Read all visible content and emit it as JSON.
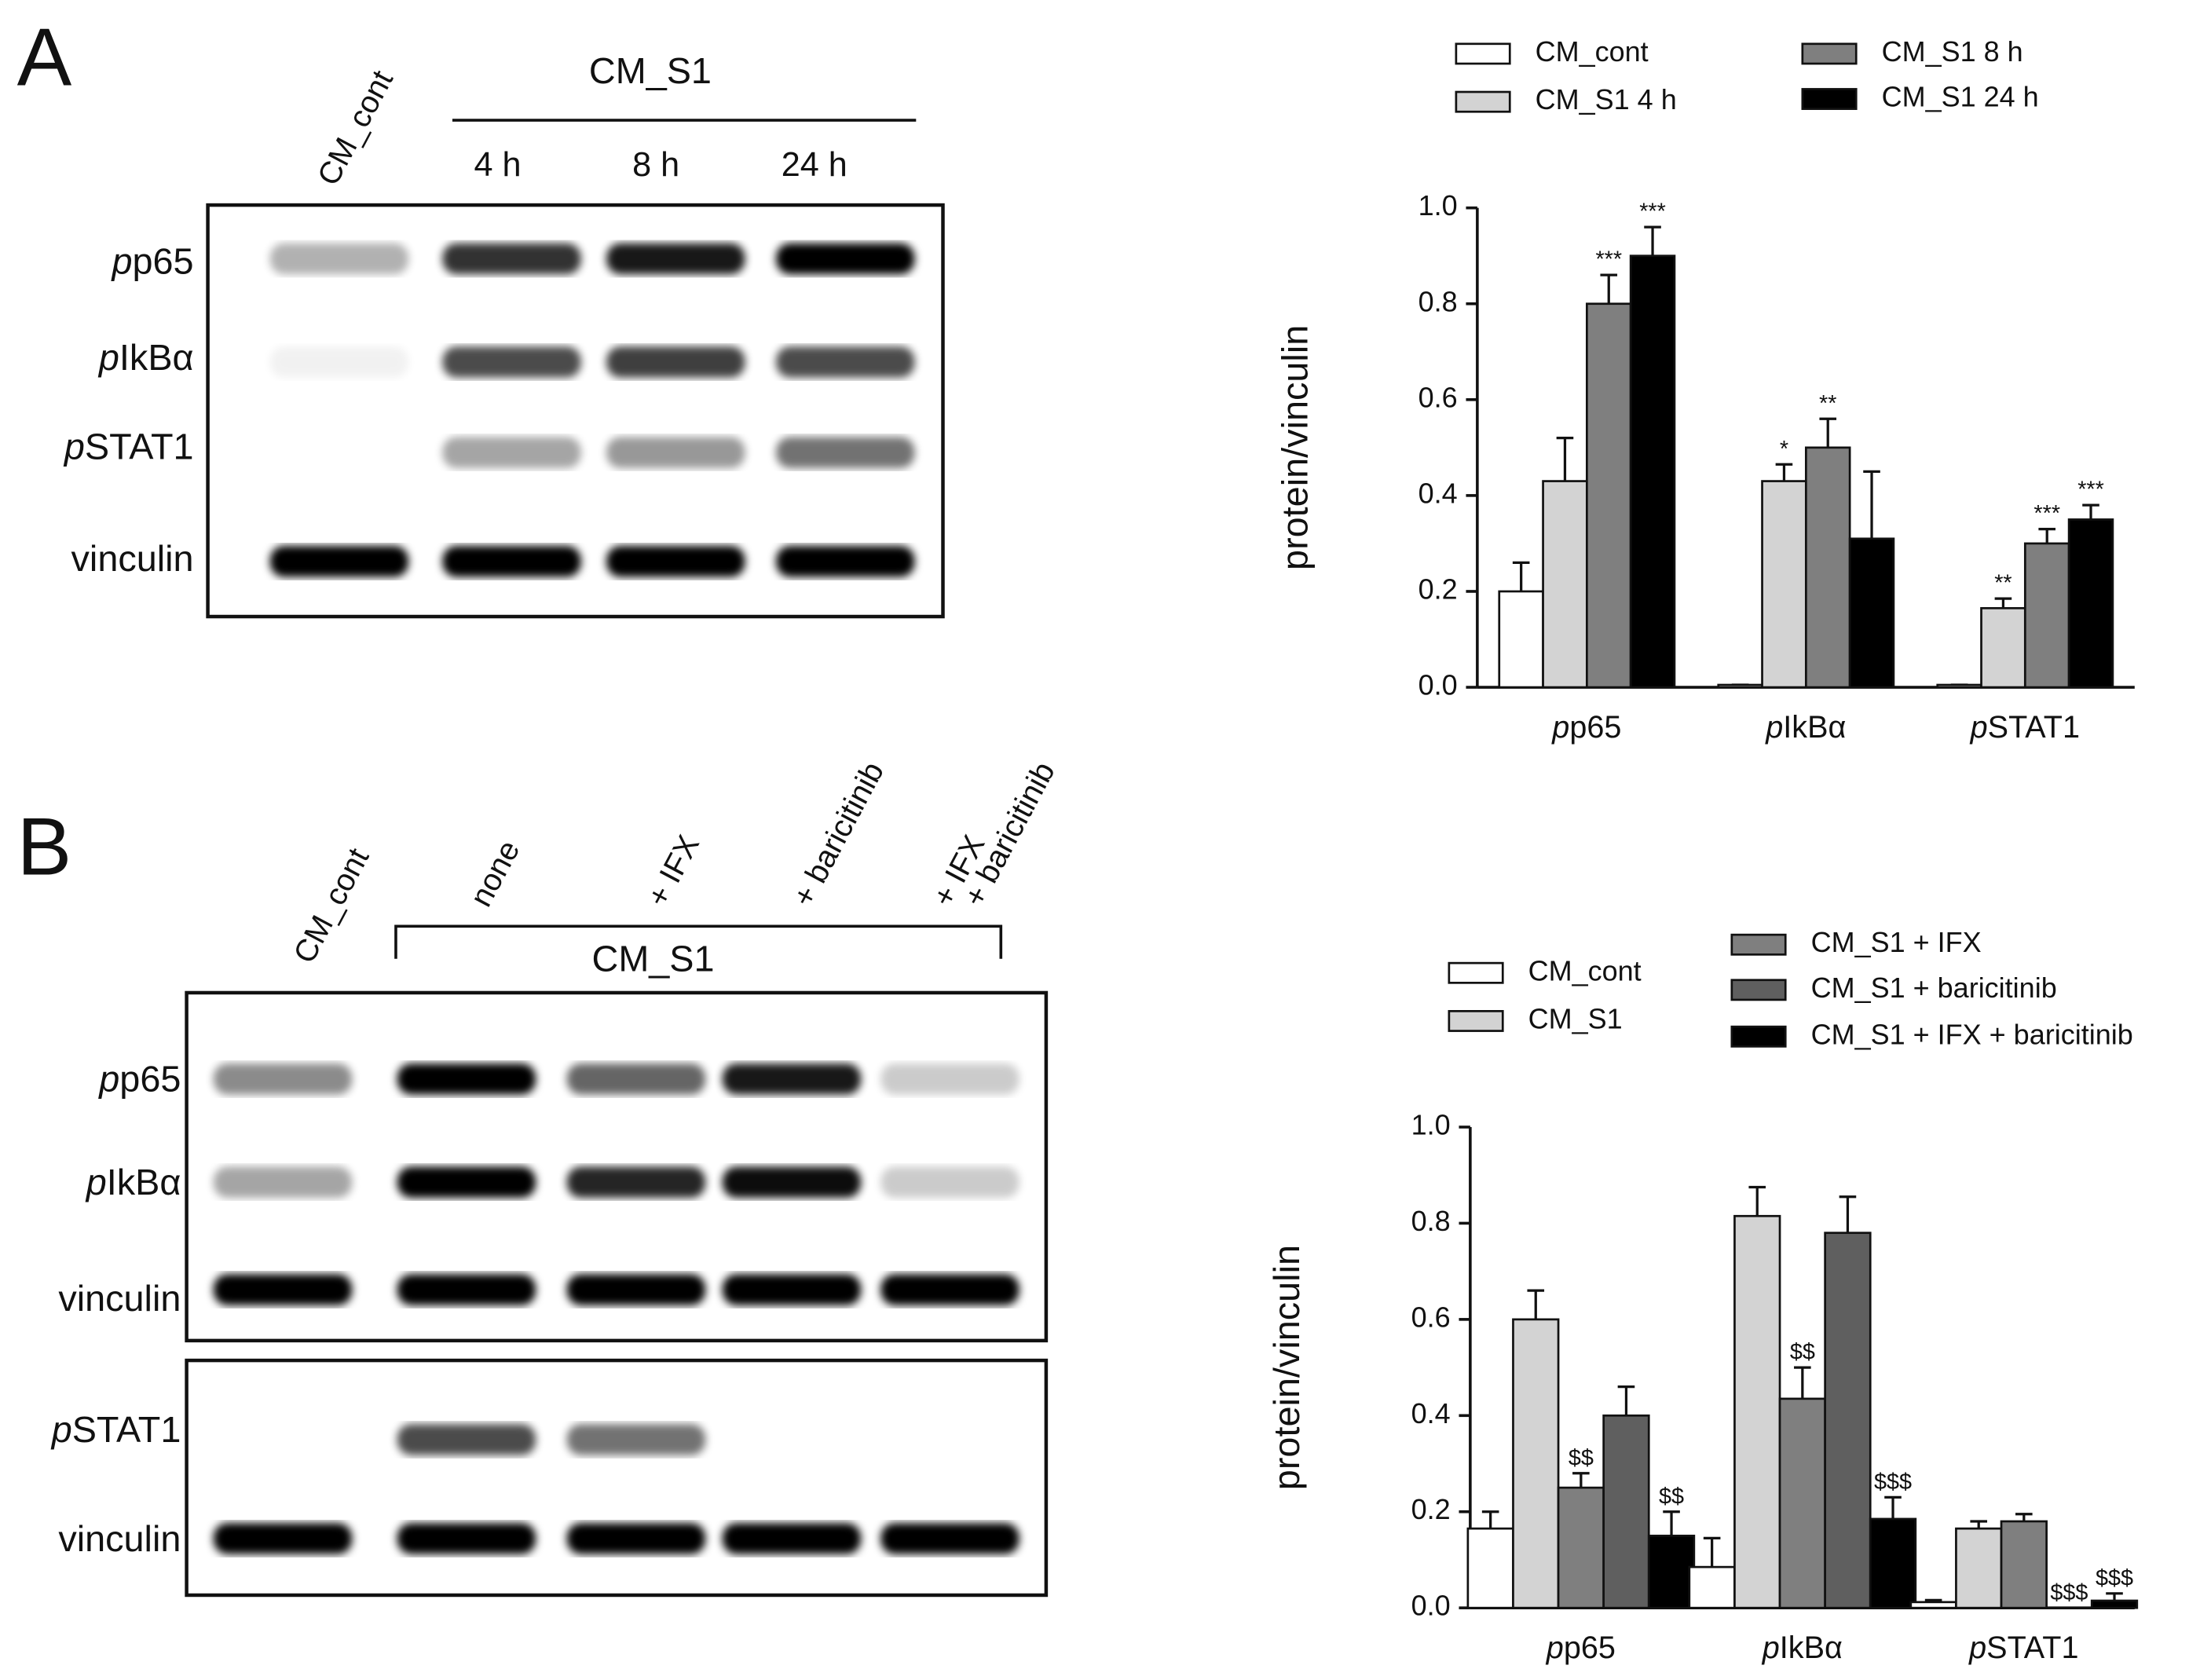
{
  "panels": [
    {
      "letter": "A",
      "lanes": [
        "CM_cont"
      ],
      "group": "CM_S1",
      "group_lanes": [
        "4 h",
        "8  h",
        "24 h"
      ],
      "rows": [
        "pp65",
        "pIkBα",
        "pSTAT1",
        "vinculin"
      ]
    },
    {
      "letter": "B",
      "lanes": [
        "CM_cont",
        "none",
        "+ IFX",
        "+ baricitinib",
        [
          "+ IFX",
          "+ baricitinib"
        ]
      ],
      "group": "CM_S1",
      "rows": [
        "pp65",
        "pIkBα",
        "vinculin",
        "pSTAT1",
        "vinculin"
      ]
    }
  ],
  "chart_data": [
    {
      "type": "bar",
      "y_label": "protein/vinculin",
      "categories": [
        "pp65",
        "pIkBα",
        "pSTAT1"
      ],
      "ylim": [
        0,
        1
      ],
      "yticks": [
        {
          "value": 0,
          "label": "0.0"
        },
        0.2,
        0.4,
        0.6,
        0.8,
        {
          "value": 1,
          "label": "1.0"
        }
      ],
      "series": [
        {
          "name": "CM_cont",
          "color": "#ffffff",
          "values": [
            0.2,
            0.005,
            0.005
          ],
          "errors": [
            0.06,
            0,
            0
          ],
          "labels": [
            null,
            null,
            null
          ]
        },
        {
          "name": "CM_S1 4 h",
          "color": "#d3d3d3",
          "values": [
            0.43,
            0.43,
            0.165
          ],
          "errors": [
            0.09,
            0.035,
            0.02
          ],
          "labels": [
            null,
            "*",
            "**"
          ]
        },
        {
          "name": "CM_S1 8 h",
          "color": "#7f7f7f",
          "values": [
            0.8,
            0.5,
            0.3
          ],
          "errors": [
            0.06,
            0.06,
            0.03
          ],
          "labels": [
            "***",
            "**",
            "***"
          ]
        },
        {
          "name": "CM_S1 24 h",
          "color": "#000000",
          "values": [
            0.9,
            0.31,
            0.35
          ],
          "errors": [
            0.06,
            0.14,
            0.03
          ],
          "labels": [
            "***",
            null,
            "***"
          ]
        }
      ]
    },
    {
      "type": "bar",
      "y_label": "protein/vinculin",
      "categories": [
        "pp65",
        "pIkBα",
        "pSTAT1"
      ],
      "ylim": [
        0,
        1
      ],
      "yticks": [
        {
          "value": 0,
          "label": "0.0"
        },
        0.2,
        0.4,
        0.6,
        0.8,
        {
          "value": 1,
          "label": "1.0"
        }
      ],
      "series": [
        {
          "name": "CM_cont",
          "color": "#ffffff",
          "values": [
            0.165,
            0.085,
            0.012
          ],
          "errors": [
            0.035,
            0.06,
            0.004
          ],
          "labels": [
            null,
            null,
            null
          ]
        },
        {
          "name": "CM_S1",
          "color": "#d3d3d3",
          "values": [
            0.6,
            0.815,
            0.165
          ],
          "errors": [
            0.06,
            0.06,
            0.015
          ],
          "labels": [
            null,
            null,
            null
          ]
        },
        {
          "name": "CM_S1 + IFX",
          "color": "#7f7f7f",
          "values": [
            0.25,
            0.435,
            0.18
          ],
          "errors": [
            0.03,
            0.065,
            0.015
          ],
          "labels": [
            "$$",
            "$$",
            null
          ]
        },
        {
          "name": "CM_S1 + baricitinib",
          "color": "#5f5f5f",
          "values": [
            0.4,
            0.78,
            0.0
          ],
          "errors": [
            0.06,
            0.075,
            0
          ],
          "labels": [
            null,
            null,
            "$$$"
          ]
        },
        {
          "name": "CM_S1 + IFX + baricitinib",
          "color": "#000000",
          "values": [
            0.15,
            0.185,
            0.015
          ],
          "errors": [
            0.05,
            0.045,
            0.015
          ],
          "labels": [
            "$$",
            "$$$",
            "$$$"
          ]
        }
      ]
    }
  ]
}
